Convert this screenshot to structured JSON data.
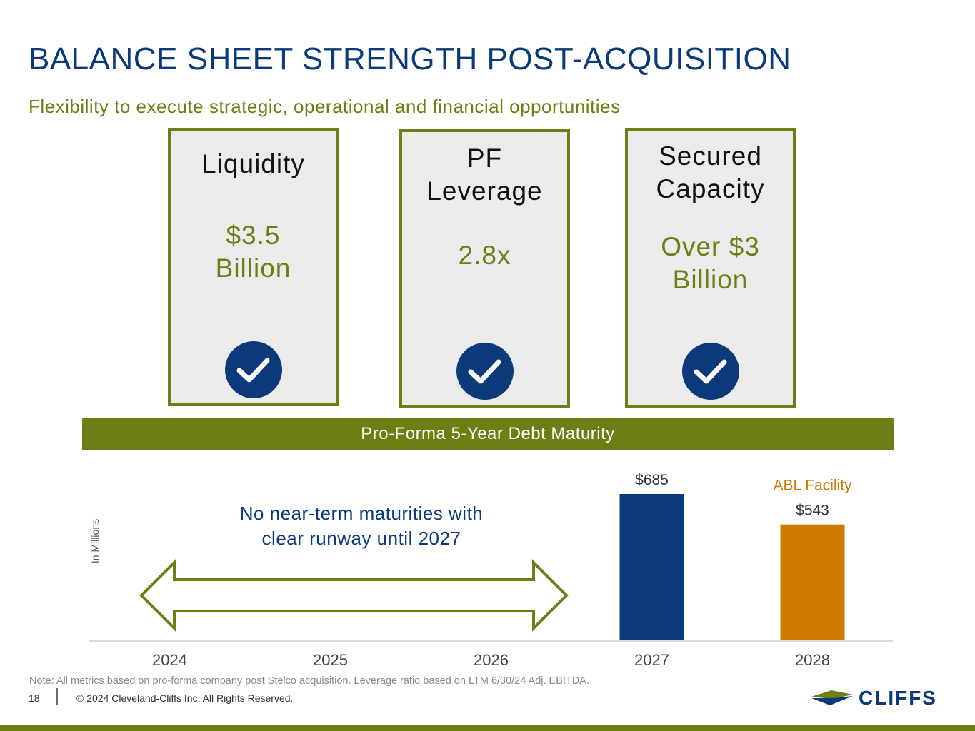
{
  "header": {
    "title": "BALANCE SHEET STRENGTH POST-ACQUISITION",
    "subtitle": "Flexibility to execute strategic, operational and financial opportunities"
  },
  "cards": [
    {
      "title_lines": [
        "Liquidity"
      ],
      "value_lines": [
        "$3.5",
        "Billion"
      ],
      "icon": "check-icon"
    },
    {
      "title_lines": [
        "PF",
        "Leverage"
      ],
      "value_lines": [
        "2.8x"
      ],
      "icon": "check-icon"
    },
    {
      "title_lines": [
        "Secured",
        "Capacity"
      ],
      "value_lines": [
        "Over $3",
        "Billion"
      ],
      "icon": "check-icon"
    }
  ],
  "banner": "Pro-Forma 5-Year Debt Maturity",
  "annotation": {
    "line1": "No near-term maturities with",
    "line2": "clear runway until 2027"
  },
  "chart_data": {
    "type": "bar",
    "categories": [
      "2024",
      "2025",
      "2026",
      "2027",
      "2028"
    ],
    "values": [
      0,
      0,
      0,
      685,
      543
    ],
    "data_labels": [
      "",
      "",
      "",
      "$685",
      "$543"
    ],
    "bar_colors": [
      "#0a3a7a",
      "#0a3a7a",
      "#0a3a7a",
      "#0a3a7a",
      "#cc7a00"
    ],
    "ylabel": "In Millions",
    "annotations": [
      {
        "category": "2028",
        "text": "ABL Facility",
        "color": "#cc7a00"
      }
    ],
    "ylim": [
      0,
      685
    ],
    "grid": false,
    "legend": "none"
  },
  "colors": {
    "navy": "#0a3a7a",
    "olive": "#6b7f14",
    "orange": "#cc7a00",
    "card_bg": "#ebebeb"
  },
  "footer": {
    "note": "Note: All metrics based on pro-forma company post Stelco acquisition. Leverage ratio based on LTM 6/30/24 Adj. EBITDA.",
    "page_number": "18",
    "copyright": "© 2024 Cleveland-Cliffs Inc. All Rights Reserved.",
    "logo_text": "CLIFFS"
  }
}
